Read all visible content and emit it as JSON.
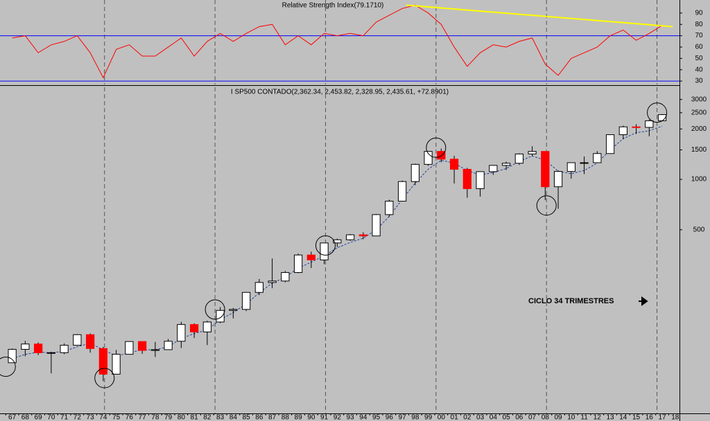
{
  "chart_data": [
    {
      "type": "line",
      "title": "Relative Strength Index(79.1710)",
      "x": [
        1967,
        1968,
        1969,
        1970,
        1971,
        1972,
        1973,
        1974,
        1975,
        1976,
        1977,
        1978,
        1979,
        1980,
        1981,
        1982,
        1983,
        1984,
        1985,
        1986,
        1987,
        1988,
        1989,
        1990,
        1991,
        1992,
        1993,
        1994,
        1995,
        1996,
        1997,
        1998,
        1999,
        2000,
        2001,
        2002,
        2003,
        2004,
        2005,
        2006,
        2007,
        2008,
        2009,
        2010,
        2011,
        2012,
        2013,
        2014,
        2015,
        2016,
        2017
      ],
      "series": [
        {
          "color": "#ff0000",
          "values": [
            68,
            70,
            55,
            62,
            65,
            70,
            55,
            33,
            58,
            62,
            52,
            52,
            60,
            68,
            52,
            65,
            72,
            65,
            72,
            78,
            80,
            62,
            70,
            62,
            72,
            70,
            72,
            70,
            82,
            88,
            94,
            97,
            90,
            80,
            60,
            43,
            55,
            62,
            60,
            65,
            68,
            45,
            35,
            50,
            55,
            60,
            70,
            75,
            66,
            72,
            79.171
          ]
        }
      ],
      "hlines": [
        70,
        30
      ],
      "hline_color": "#0000ff",
      "trendline": {
        "color": "#ffff00",
        "x": [
          1997.8,
          2018.3
        ],
        "values": [
          97,
          78
        ]
      },
      "cycle_lines": [
        1974.6,
        1983.1,
        1991.6,
        2000.1,
        2008.6,
        2017.1
      ],
      "xlim": [
        1966.56,
        2018.83
      ],
      "ylim": [
        27,
        101.5
      ],
      "yticks": [
        30,
        40,
        50,
        60,
        70,
        80,
        90
      ]
    },
    {
      "type": "candlestick",
      "title": "I SP500 CONTADO(2,362.34, 2,453.82, 2,328.95, 2,435.61, +72.8901)",
      "x": [
        1967,
        1968,
        1969,
        1970,
        1971,
        1972,
        1973,
        1974,
        1975,
        1976,
        1977,
        1978,
        1979,
        1980,
        1981,
        1982,
        1983,
        1984,
        1985,
        1986,
        1987,
        1988,
        1989,
        1990,
        1991,
        1992,
        1993,
        1994,
        1995,
        1996,
        1997,
        1998,
        1999,
        2000,
        2001,
        2002,
        2003,
        2004,
        2005,
        2006,
        2007,
        2008,
        2009,
        2010,
        2011,
        2012,
        2013,
        2014,
        2015,
        2016,
        2017
      ],
      "open": [
        80.3,
        96.5,
        103.9,
        92.1,
        92.2,
        102.1,
        118.1,
        97.6,
        68.6,
        90.2,
        107.5,
        95.1,
        96.1,
        107.9,
        135.8,
        122.6,
        140.6,
        164.9,
        167.2,
        211.3,
        242.2,
        247.1,
        277.7,
        353.4,
        330.2,
        417.1,
        435.7,
        466.5,
        459.3,
        615.9,
        740.7,
        970.4,
        1229.2,
        1469.3,
        1320.3,
        1148.1,
        879.8,
        1111.9,
        1211.9,
        1248.3,
        1418.3,
        1468.4,
        903.3,
        1115.1,
        1257.6,
        1257.6,
        1426.2,
        1848.4,
        2058.9,
        2043.9,
        2238.8
      ],
      "high": [
        97.6,
        108.4,
        106.2,
        93.5,
        104.8,
        119.1,
        120.2,
        99.8,
        95.6,
        107.8,
        107.5,
        106.9,
        111.3,
        141.0,
        138.1,
        143.0,
        172.7,
        170.4,
        212.0,
        254.0,
        336.8,
        283.7,
        360.4,
        369.8,
        417.1,
        442.7,
        471.3,
        482.9,
        621.7,
        757.0,
        983.8,
        1241.8,
        1469.3,
        1527.5,
        1383.4,
        1172.5,
        1112.6,
        1217.9,
        1275.8,
        1431.8,
        1576.1,
        1471.8,
        1130.4,
        1262.6,
        1370.6,
        1474.5,
        1849.4,
        2093.6,
        2134.7,
        2277.5,
        2453.8
      ],
      "low": [
        80.3,
        87.7,
        89.2,
        69.3,
        90.2,
        101.7,
        92.2,
        62.3,
        68.6,
        90.2,
        90.7,
        86.9,
        96.1,
        98.2,
        112.8,
        102.4,
        138.3,
        147.8,
        163.4,
        203.5,
        223.9,
        242.6,
        275.3,
        295.5,
        311.5,
        394.5,
        429.0,
        438.9,
        459.3,
        597.3,
        737.0,
        923.3,
        1205.5,
        1264.7,
        944.8,
        776.8,
        788.9,
        1063.2,
        1137.5,
        1219.3,
        1374.1,
        752.4,
        666.8,
        1010.9,
        1074.8,
        1257.6,
        1426.2,
        1737.9,
        1867.0,
        1810.1,
        2233.6
      ],
      "close": [
        96.5,
        103.9,
        92.1,
        92.2,
        102.1,
        118.1,
        97.6,
        68.6,
        90.2,
        107.5,
        95.1,
        96.1,
        107.9,
        135.8,
        122.6,
        140.6,
        164.9,
        167.2,
        211.3,
        242.2,
        247.1,
        277.7,
        353.4,
        330.2,
        417.1,
        435.7,
        466.5,
        459.3,
        615.9,
        740.7,
        970.4,
        1229.2,
        1469.3,
        1320.3,
        1148.1,
        879.8,
        1111.9,
        1211.9,
        1248.3,
        1418.3,
        1468.4,
        903.3,
        1115.1,
        1257.6,
        1257.6,
        1426.2,
        1848.4,
        2058.9,
        2043.9,
        2238.8,
        2435.6
      ],
      "up_color": "#ffffff",
      "down_color": "#ff0000",
      "series": [
        {
          "color": "#1f3f9f",
          "values": [
            85,
            90,
            93,
            92,
            94,
            100,
            105,
            96,
            88,
            92,
            96,
            96,
            100,
            112,
            120,
            126,
            145,
            160,
            180,
            210,
            240,
            260,
            295,
            320,
            350,
            390,
            420,
            445,
            500,
            600,
            760,
            950,
            1150,
            1300,
            1250,
            1130,
            1060,
            1100,
            1160,
            1280,
            1380,
            1300,
            1120,
            1080,
            1130,
            1250,
            1500,
            1750,
            1900,
            1950,
            2080
          ]
        }
      ],
      "circles": {
        "x": [
          1967.0,
          1974.6,
          1983.1,
          1991.6,
          2000.1,
          2008.6,
          2017.1
        ],
        "values": [
          76,
          65,
          167,
          403,
          1546,
          698,
          2506
        ]
      },
      "cycle_lines": [
        1974.6,
        1983.1,
        1991.6,
        2000.1,
        2008.6,
        2017.1
      ],
      "annotation": "CICLO 34 TRIMESTRES",
      "log_scale": true,
      "xlim": [
        1966.56,
        2018.83
      ],
      "ylim": [
        40,
        3550
      ],
      "yticks": [
        500,
        1000,
        1500,
        2000,
        2500,
        3000
      ],
      "xticks": [
        {
          "value": 1967,
          "label": "67"
        },
        {
          "value": 1968,
          "label": "68"
        },
        {
          "value": 1969,
          "label": "69"
        },
        {
          "value": 1970,
          "label": "70"
        },
        {
          "value": 1971,
          "label": "71"
        },
        {
          "value": 1972,
          "label": "72"
        },
        {
          "value": 1973,
          "label": "73"
        },
        {
          "value": 1974,
          "label": "74"
        },
        {
          "value": 1975,
          "label": "75"
        },
        {
          "value": 1976,
          "label": "76"
        },
        {
          "value": 1977,
          "label": "77"
        },
        {
          "value": 1978,
          "label": "78"
        },
        {
          "value": 1979,
          "label": "79"
        },
        {
          "value": 1980,
          "label": "80"
        },
        {
          "value": 1981,
          "label": "81"
        },
        {
          "value": 1982,
          "label": "82"
        },
        {
          "value": 1983,
          "label": "83"
        },
        {
          "value": 1984,
          "label": "84"
        },
        {
          "value": 1985,
          "label": "85"
        },
        {
          "value": 1986,
          "label": "86"
        },
        {
          "value": 1987,
          "label": "87"
        },
        {
          "value": 1988,
          "label": "88"
        },
        {
          "value": 1989,
          "label": "89"
        },
        {
          "value": 1990,
          "label": "90"
        },
        {
          "value": 1991,
          "label": "91"
        },
        {
          "value": 1992,
          "label": "92"
        },
        {
          "value": 1993,
          "label": "93"
        },
        {
          "value": 1994,
          "label": "94"
        },
        {
          "value": 1995,
          "label": "95"
        },
        {
          "value": 1996,
          "label": "96"
        },
        {
          "value": 1997,
          "label": "97"
        },
        {
          "value": 1998,
          "label": "98"
        },
        {
          "value": 1999,
          "label": "99"
        },
        {
          "value": 2000,
          "label": "00"
        },
        {
          "value": 2001,
          "label": "01"
        },
        {
          "value": 2002,
          "label": "02"
        },
        {
          "value": 2003,
          "label": "03"
        },
        {
          "value": 2004,
          "label": "04"
        },
        {
          "value": 2005,
          "label": "05"
        },
        {
          "value": 2006,
          "label": "06"
        },
        {
          "value": 2007,
          "label": "07"
        },
        {
          "value": 2008,
          "label": "08"
        },
        {
          "value": 2009,
          "label": "09"
        },
        {
          "value": 2010,
          "label": "10"
        },
        {
          "value": 2011,
          "label": "11"
        },
        {
          "value": 2012,
          "label": "12"
        },
        {
          "value": 2013,
          "label": "13"
        },
        {
          "value": 2014,
          "label": "14"
        },
        {
          "value": 2015,
          "label": "15"
        },
        {
          "value": 2016,
          "label": "16"
        },
        {
          "value": 2017,
          "label": "17"
        },
        {
          "value": 2018,
          "label": "18"
        }
      ]
    }
  ]
}
